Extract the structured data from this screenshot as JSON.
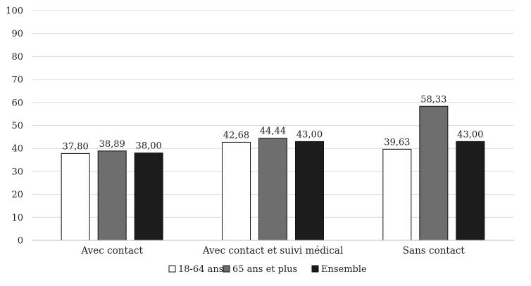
{
  "chart_data": {
    "type": "bar",
    "categories": [
      "Avec contact",
      "Avec contact et suivi médical",
      "Sans contact"
    ],
    "series": [
      {
        "name": "18-64 ans",
        "values": [
          37.8,
          42.68,
          39.63
        ],
        "labels": [
          "37,80",
          "42,68",
          "39,63"
        ],
        "color": "#ffffff"
      },
      {
        "name": "65 ans et plus",
        "values": [
          38.89,
          44.44,
          58.33
        ],
        "labels": [
          "38,89",
          "44,44",
          "58,33"
        ],
        "color": "#6e6e6e"
      },
      {
        "name": "Ensemble",
        "values": [
          38.0,
          43.0,
          43.0
        ],
        "labels": [
          "38,00",
          "43,00",
          "43,00"
        ],
        "color": "#1c1c1c"
      }
    ],
    "ylim": [
      0,
      100
    ],
    "yticks": [
      "0",
      "10",
      "20",
      "30",
      "40",
      "50",
      "60",
      "70",
      "80",
      "90",
      "100"
    ],
    "grid": true,
    "legend": "bottom",
    "title": "",
    "xlabel": "",
    "ylabel": ""
  }
}
